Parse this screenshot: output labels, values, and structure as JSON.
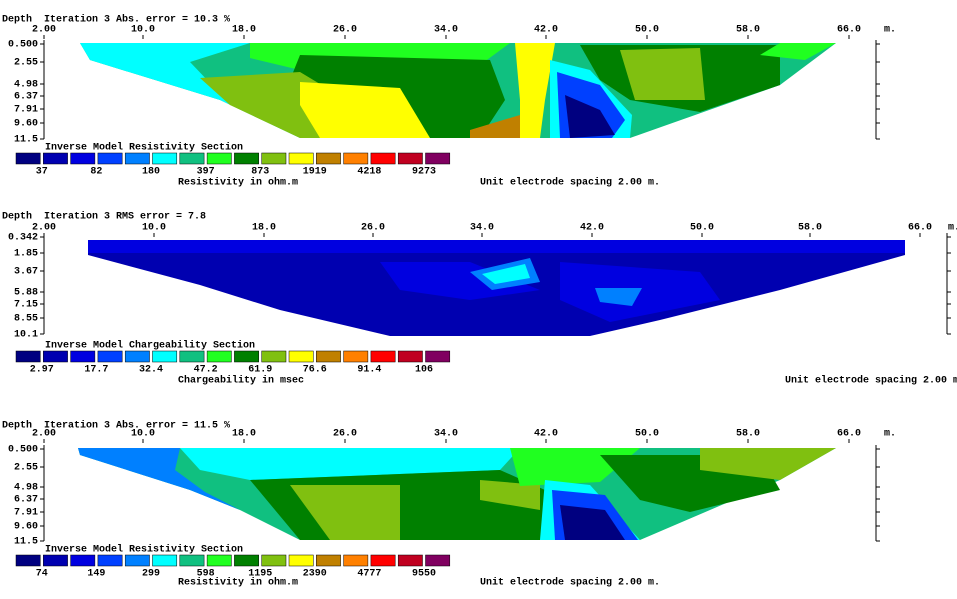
{
  "panels": [
    {
      "depth_label": "Depth",
      "header": "Iteration 3 Abs. error = 10.3 %",
      "x_ticks": [
        "2.00",
        "10.0",
        "18.0",
        "26.0",
        "34.0",
        "42.0",
        "50.0",
        "58.0",
        "66.0"
      ],
      "x_unit": "m.",
      "depths": [
        "0.500",
        "2.55",
        "4.98",
        "6.37",
        "7.91",
        "9.60",
        "11.5"
      ],
      "section_title": "Inverse Model Resistivity Section",
      "scale_labels": [
        "37",
        "82",
        "180",
        "397",
        "873",
        "1919",
        "4218",
        "9273"
      ],
      "scale_caption": "Resistivity in ohm.m",
      "spacing_note": "Unit electrode spacing 2.00 m."
    },
    {
      "depth_label": "Depth",
      "header": "Iteration 3 RMS error = 7.8",
      "x_ticks": [
        "2.00",
        "10.0",
        "18.0",
        "26.0",
        "34.0",
        "42.0",
        "50.0",
        "58.0",
        "66.0"
      ],
      "x_unit": "m.",
      "depths": [
        "0.342",
        "1.85",
        "3.67",
        "5.88",
        "7.15",
        "8.55",
        "10.1"
      ],
      "section_title": "Inverse Model Chargeability Section",
      "scale_labels": [
        "2.97",
        "17.7",
        "32.4",
        "47.2",
        "61.9",
        "76.6",
        "91.4",
        "106"
      ],
      "scale_caption": "Chargeability in msec",
      "spacing_note": "Unit electrode spacing 2.00 m."
    },
    {
      "depth_label": "Depth",
      "header": "Iteration 3 Abs. error = 11.5 %",
      "x_ticks": [
        "2.00",
        "10.0",
        "18.0",
        "26.0",
        "34.0",
        "42.0",
        "50.0",
        "58.0",
        "66.0"
      ],
      "x_unit": "m.",
      "depths": [
        "0.500",
        "2.55",
        "4.98",
        "6.37",
        "7.91",
        "9.60",
        "11.5"
      ],
      "section_title": "Inverse Model Resistivity Section",
      "scale_labels": [
        "74",
        "149",
        "299",
        "598",
        "1195",
        "2390",
        "4777",
        "9550"
      ],
      "scale_caption": "Resistivity in ohm.m",
      "spacing_note": "Unit electrode spacing 2.00 m."
    }
  ]
}
